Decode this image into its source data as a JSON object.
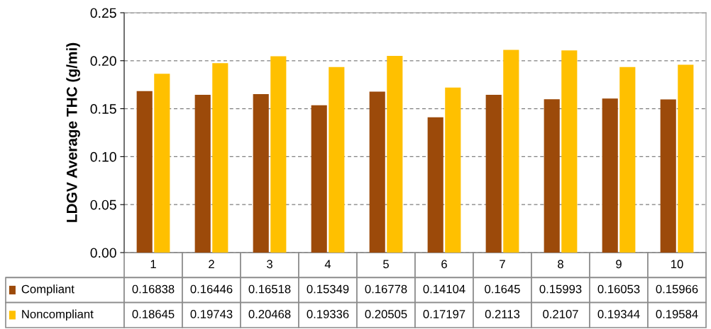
{
  "chart_data": {
    "type": "bar",
    "ylabel": "LDGV Average THC (g/mi)",
    "categories": [
      "1",
      "2",
      "3",
      "4",
      "5",
      "6",
      "7",
      "8",
      "9",
      "10"
    ],
    "series": [
      {
        "name": "Compliant",
        "color": "#9c4a0a",
        "values": [
          0.16838,
          0.16446,
          0.16518,
          0.15349,
          0.16778,
          0.14104,
          0.1645,
          0.15993,
          0.16053,
          0.15966
        ]
      },
      {
        "name": "Noncompliant",
        "color": "#ffc000",
        "values": [
          0.18645,
          0.19743,
          0.20468,
          0.19336,
          0.20505,
          0.17197,
          0.2113,
          0.2107,
          0.19344,
          0.19584
        ]
      }
    ],
    "ylim": [
      0,
      0.25
    ],
    "yticks": [
      {
        "value": 0,
        "label": "0.00"
      },
      {
        "value": 0.05,
        "label": "0.05"
      },
      {
        "value": 0.1,
        "label": "0.10"
      },
      {
        "value": 0.15,
        "label": "0.15"
      },
      {
        "value": 0.2,
        "label": "0.20"
      },
      {
        "value": 0.25,
        "label": "0.25"
      }
    ],
    "grid": "y",
    "legend": "bottom",
    "data_labels": true
  }
}
